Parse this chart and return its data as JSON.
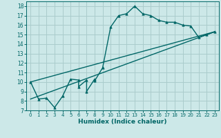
{
  "xlabel": "Humidex (Indice chaleur)",
  "background_color": "#cce8e8",
  "grid_color": "#aacccc",
  "line_color": "#006666",
  "xlim": [
    -0.5,
    23.5
  ],
  "ylim": [
    7,
    18.5
  ],
  "xticks": [
    0,
    1,
    2,
    3,
    4,
    5,
    6,
    7,
    8,
    9,
    10,
    11,
    12,
    13,
    14,
    15,
    16,
    17,
    18,
    19,
    20,
    21,
    22,
    23
  ],
  "yticks": [
    7,
    8,
    9,
    10,
    11,
    12,
    13,
    14,
    15,
    16,
    17,
    18
  ],
  "curve_x": [
    0,
    1,
    2,
    3,
    4,
    5,
    6,
    6,
    7,
    7,
    8,
    8,
    9,
    10,
    11,
    12,
    13,
    14,
    15,
    16,
    17,
    18,
    19,
    20,
    21,
    22,
    23
  ],
  "curve_y": [
    10.0,
    8.2,
    8.3,
    7.3,
    8.5,
    10.3,
    10.2,
    9.5,
    10.2,
    9.0,
    10.3,
    10.1,
    11.5,
    15.8,
    17.0,
    17.2,
    18.0,
    17.2,
    17.0,
    16.5,
    16.3,
    16.3,
    16.0,
    15.9,
    14.7,
    15.0,
    15.3
  ],
  "line1_x": [
    0,
    23
  ],
  "line1_y": [
    10.0,
    15.3
  ],
  "line2_x": [
    0,
    23
  ],
  "line2_y": [
    8.2,
    15.3
  ]
}
